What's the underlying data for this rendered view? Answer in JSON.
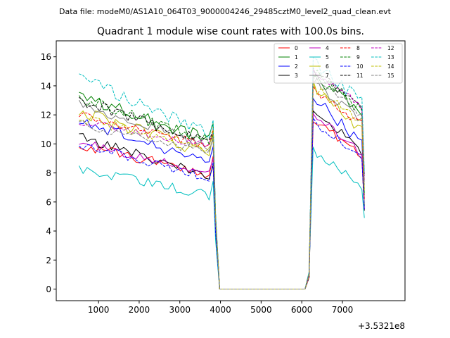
{
  "chart_data": {
    "type": "line",
    "suptitle": "Data file: modeM0/AS1A10_064T03_9000004246_29485cztM0_level2_quad_clean.evt",
    "title": "Quadrant 1 module wise count rates with 100.0s bins.",
    "xlabel": "",
    "ylabel": "",
    "offset_label": "+3.5321e8",
    "xlim": [
      -40,
      8540
    ],
    "ylim": [
      -0.8,
      17.1
    ],
    "x_ticks": [
      1000,
      2000,
      3000,
      4000,
      5000,
      6000,
      7000
    ],
    "x_tick_labels": [
      "1000",
      "2000",
      "3000",
      "4000",
      "5000",
      "6000",
      "7000"
    ],
    "y_ticks": [
      0,
      2,
      4,
      6,
      8,
      10,
      12,
      14,
      16
    ],
    "y_tick_labels": [
      "0",
      "2",
      "4",
      "6",
      "8",
      "10",
      "12",
      "14",
      "16"
    ],
    "legend_position": "top-right",
    "legend_ncol": 4,
    "bin_width_s": 100,
    "gaps": {
      "segment1": {
        "start": 520,
        "end": 3780,
        "step": 100,
        "fall_x": [
          3880,
          3980
        ],
        "fall_frac": 0.45
      },
      "zero_span": [
        4080,
        6080
      ],
      "segment2": {
        "start": 6180,
        "end": 7480,
        "step": 100
      },
      "tail_x": 7540
    },
    "series": [
      {
        "name": "0",
        "color": "#ff0000",
        "dash": "solid",
        "seg1_start": 9.9,
        "seg1_end": 7.9,
        "noise": 0.35,
        "rise1": 1.0,
        "seg2_start": 11.8,
        "seg2_end": 9.0,
        "tail": 5.5
      },
      {
        "name": "1",
        "color": "#008000",
        "dash": "solid",
        "seg1_start": 13.3,
        "seg1_end": 10.2,
        "noise": 0.45,
        "rise1": 1.0,
        "seg2_start": 14.8,
        "seg2_end": 12.2,
        "tail": 5.7
      },
      {
        "name": "2",
        "color": "#0000ff",
        "dash": "solid",
        "seg1_start": 11.6,
        "seg1_end": 8.6,
        "noise": 0.4,
        "rise1": 1.0,
        "seg2_start": 13.3,
        "seg2_end": 10.0,
        "tail": 5.6
      },
      {
        "name": "3",
        "color": "#000000",
        "dash": "solid",
        "seg1_start": 10.5,
        "seg1_end": 7.7,
        "noise": 0.35,
        "rise1": 1.0,
        "seg2_start": 12.4,
        "seg2_end": 9.5,
        "tail": 5.4
      },
      {
        "name": "4",
        "color": "#bf00bf",
        "dash": "solid",
        "seg1_start": 10.1,
        "seg1_end": 8.0,
        "noise": 0.3,
        "rise1": 1.0,
        "seg2_start": 12.0,
        "seg2_end": 9.4,
        "tail": 5.5
      },
      {
        "name": "5",
        "color": "#00bfbf",
        "dash": "solid",
        "seg1_start": 8.3,
        "seg1_end": 6.4,
        "noise": 0.35,
        "rise1": 1.0,
        "seg2_start": 9.6,
        "seg2_end": 7.0,
        "tail": 4.9
      },
      {
        "name": "6",
        "color": "#bfbf00",
        "dash": "solid",
        "seg1_start": 12.2,
        "seg1_end": 9.3,
        "noise": 0.45,
        "rise1": 1.0,
        "seg2_start": 14.0,
        "seg2_end": 11.0,
        "tail": 5.7
      },
      {
        "name": "7",
        "color": "#808080",
        "dash": "solid",
        "seg1_start": 12.8,
        "seg1_end": 9.7,
        "noise": 0.4,
        "rise1": 1.0,
        "seg2_start": 14.4,
        "seg2_end": 11.6,
        "tail": 5.8
      },
      {
        "name": "8",
        "color": "#ff0000",
        "dash": "dashed",
        "seg1_start": 12.0,
        "seg1_end": 9.8,
        "noise": 0.3,
        "rise1": 1.0,
        "seg2_start": 13.8,
        "seg2_end": 11.3,
        "tail": 6.2
      },
      {
        "name": "9",
        "color": "#008000",
        "dash": "dashed",
        "seg1_start": 13.1,
        "seg1_end": 10.1,
        "noise": 0.45,
        "rise1": 1.0,
        "seg2_start": 14.9,
        "seg2_end": 12.3,
        "tail": 6.5
      },
      {
        "name": "10",
        "color": "#0000ff",
        "dash": "dashed",
        "seg1_start": 10.0,
        "seg1_end": 7.6,
        "noise": 0.3,
        "rise1": 1.0,
        "seg2_start": 11.5,
        "seg2_end": 9.2,
        "tail": 5.5
      },
      {
        "name": "11",
        "color": "#000000",
        "dash": "dashed",
        "seg1_start": 13.0,
        "seg1_end": 10.0,
        "noise": 0.4,
        "rise1": 1.0,
        "seg2_start": 15.0,
        "seg2_end": 12.5,
        "tail": 7.8
      },
      {
        "name": "12",
        "color": "#bf00bf",
        "dash": "dashed",
        "seg1_start": 11.5,
        "seg1_end": 9.9,
        "noise": 0.3,
        "rise1": 1.0,
        "seg2_start": 14.8,
        "seg2_end": 12.6,
        "tail": 7.5
      },
      {
        "name": "13",
        "color": "#00bfbf",
        "dash": "dashed",
        "seg1_start": 14.6,
        "seg1_end": 10.6,
        "noise": 0.45,
        "rise1": 1.0,
        "seg2_start": 15.6,
        "seg2_end": 12.9,
        "tail": 8.0
      },
      {
        "name": "14",
        "color": "#bfbf00",
        "dash": "dashed",
        "seg1_start": 11.8,
        "seg1_end": 9.6,
        "noise": 0.35,
        "rise1": 1.0,
        "seg2_start": 13.9,
        "seg2_end": 11.6,
        "tail": 6.8
      },
      {
        "name": "15",
        "color": "#808080",
        "dash": "dashed",
        "seg1_start": 11.4,
        "seg1_end": 9.3,
        "noise": 0.3,
        "rise1": 1.0,
        "seg2_start": 14.6,
        "seg2_end": 12.0,
        "tail": 7.2
      }
    ]
  }
}
